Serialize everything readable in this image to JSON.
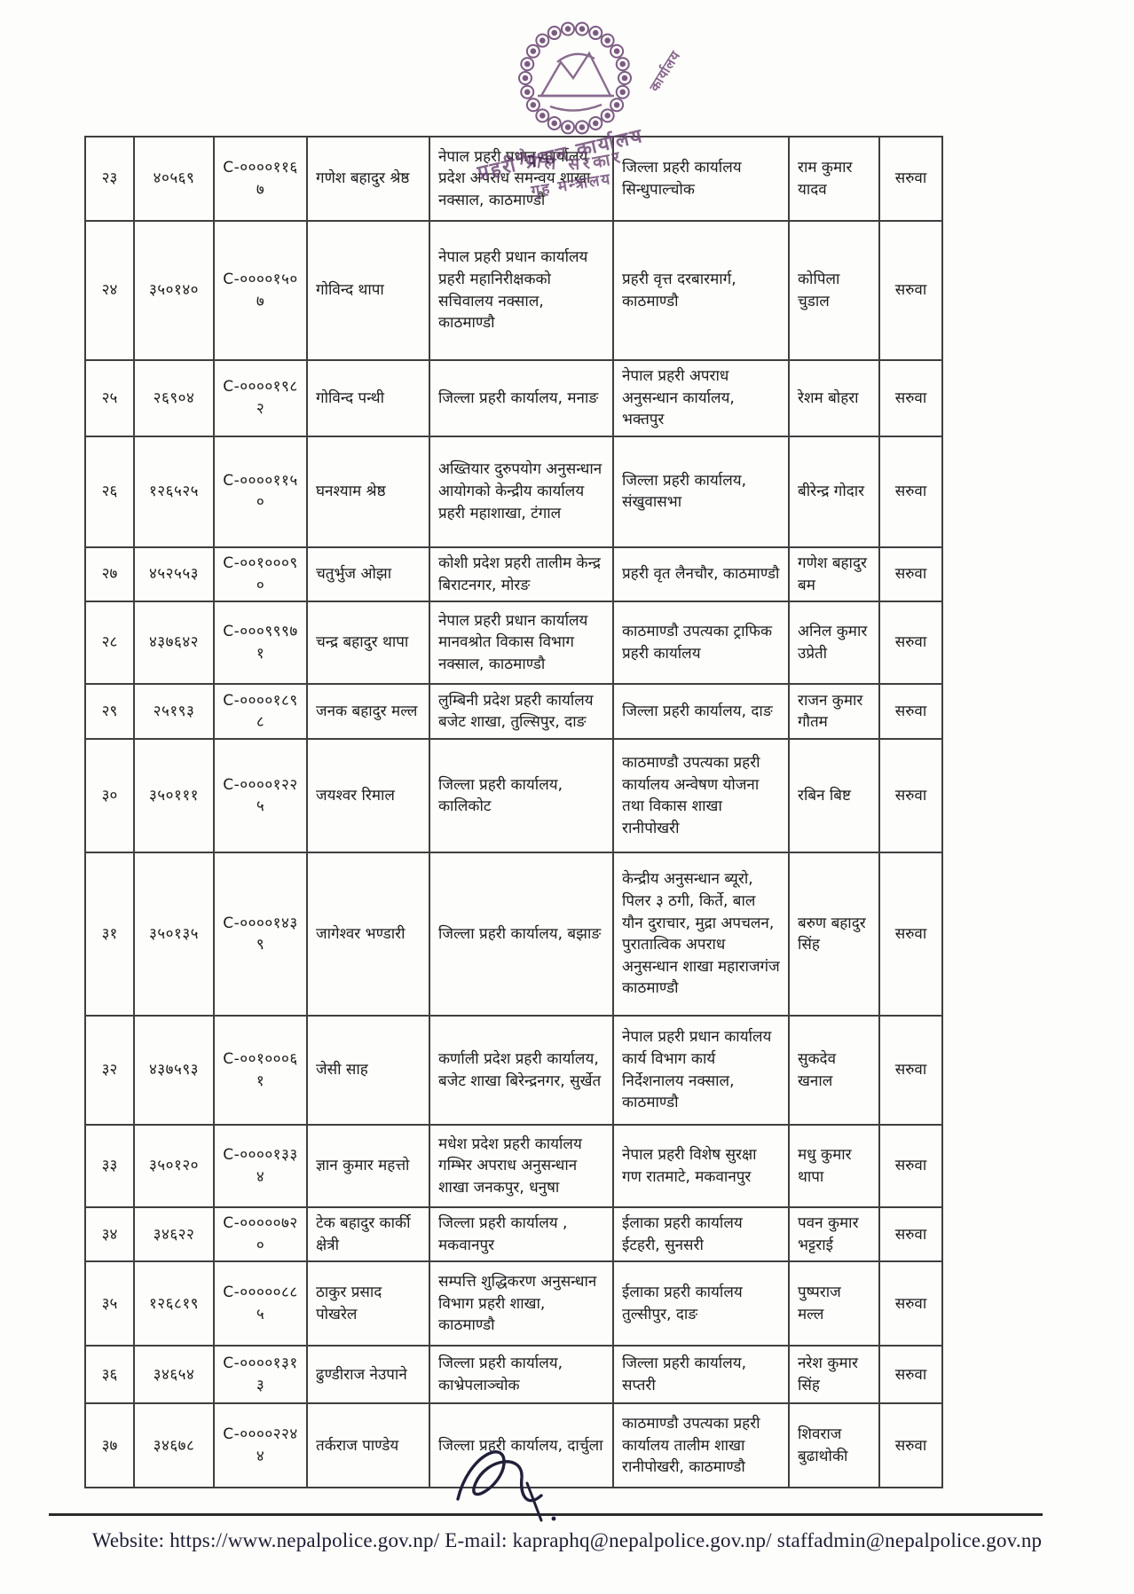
{
  "stamp": {
    "gov_text": "नेपाल सरकार",
    "ministry_text": "गृह मन्त्रालय",
    "office_text": "प्रहरी प्रधान कार्यालय",
    "office_fragment": "कार्यालय",
    "color": "#6a4472"
  },
  "table": {
    "rows": [
      {
        "sn": "२३",
        "reg_no": "४०५६९",
        "cid": "C-००००११६७",
        "name": "गणेश बहादुर श्रेष्ठ",
        "from_office": "नेपाल प्रहरी प्रधान कार्यालय प्रदेश अपराध समन्वय शाखा नक्साल, काठमाण्डौ",
        "to_office": "जिल्ला प्रहरी कार्यालय सिन्धुपाल्चोक",
        "person": "राम कुमार यादव",
        "remark": "सरुवा"
      },
      {
        "sn": "२४",
        "reg_no": "३५०१४०",
        "cid": "C-००००१५०७",
        "name": "गोविन्द थापा",
        "from_office": "नेपाल प्रहरी प्रधान कार्यालय प्रहरी महानिरीक्षकको सचिवालय नक्साल, काठमाण्डौ",
        "to_office": "प्रहरी वृत्त दरबारमार्ग, काठमाण्डौ",
        "person": "कोपिला चुडाल",
        "remark": "सरुवा"
      },
      {
        "sn": "२५",
        "reg_no": "२६९०४",
        "cid": "C-००००१९८२",
        "name": "गोविन्द पन्थी",
        "from_office": "जिल्ला प्रहरी कार्यालय, मनाङ",
        "to_office": "नेपाल प्रहरी अपराध अनुसन्धान कार्यालय, भक्तपुर",
        "person": "रेशम बोहरा",
        "remark": "सरुवा"
      },
      {
        "sn": "२६",
        "reg_no": "१२६५२५",
        "cid": "C-००००११५०",
        "name": "घनश्याम श्रेष्ठ",
        "from_office": "अख्तियार दुरुपयोग अनुसन्धान आयोगको केन्द्रीय कार्यालय प्रहरी महाशाखा, टंगाल",
        "to_office": "जिल्ला प्रहरी कार्यालय, संखुवासभा",
        "person": "बीरेन्द्र गोदार",
        "remark": "सरुवा"
      },
      {
        "sn": "२७",
        "reg_no": "४५२५५३",
        "cid": "C-००१०००९०",
        "name": "चतुर्भुज ओझा",
        "from_office": "कोशी प्रदेश प्रहरी तालीम केन्द्र बिराटनगर, मोरङ",
        "to_office": "प्रहरी वृत लैनचौर, काठमाण्डौ",
        "person": "गणेश बहादुर बम",
        "remark": "सरुवा"
      },
      {
        "sn": "२८",
        "reg_no": "४३७६४२",
        "cid": "C-०००९९९७१",
        "name": "चन्द्र बहादुर थापा",
        "from_office": "नेपाल प्रहरी प्रधान कार्यालय मानवश्रोत विकास विभाग नक्साल, काठमाण्डौ",
        "to_office": "काठमाण्डौ उपत्यका ट्राफिक प्रहरी कार्यालय",
        "person": "अनिल कुमार उप्रेती",
        "remark": "सरुवा"
      },
      {
        "sn": "२९",
        "reg_no": "२५१९३",
        "cid": "C-००००१८९८",
        "name": "जनक बहादुर मल्ल",
        "from_office": "लुम्बिनी प्रदेश प्रहरी कार्यालय बजेट शाखा, तुल्सिपुर, दाङ",
        "to_office": "जिल्ला प्रहरी कार्यालय, दाङ",
        "person": "राजन कुमार गौतम",
        "remark": "सरुवा"
      },
      {
        "sn": "३०",
        "reg_no": "३५०१११",
        "cid": "C-००००१२२५",
        "name": "जयश्वर रिमाल",
        "from_office": "जिल्ला प्रहरी कार्यालय, कालिकोट",
        "to_office": "काठमाण्डौ उपत्यका प्रहरी कार्यालय अन्वेषण योजना तथा विकास शाखा रानीपोखरी",
        "person": "रबिन बिष्ट",
        "remark": "सरुवा"
      },
      {
        "sn": "३१",
        "reg_no": "३५०१३५",
        "cid": "C-००००१४३९",
        "name": "जागेश्वर भण्डारी",
        "from_office": "जिल्ला प्रहरी कार्यालय, बझाङ",
        "to_office": "केन्द्रीय अनुसन्धान ब्यूरो, पिलर ३ ठगी, किर्ते, बाल यौन दुराचार, मुद्रा अपचलन, पुरातात्विक अपराध अनुसन्धान शाखा महाराजगंज काठमाण्डौ",
        "person": "बरुण बहादुर सिंह",
        "remark": "सरुवा"
      },
      {
        "sn": "३२",
        "reg_no": "४३७५९३",
        "cid": "C-००१०००६१",
        "name": "जेसी साह",
        "from_office": "कर्णाली प्रदेश प्रहरी कार्यालय, बजेट शाखा बिरेन्द्रनगर, सुर्खेत",
        "to_office": "नेपाल प्रहरी प्रधान कार्यालय कार्य विभाग कार्य निर्देशनालय नक्साल, काठमाण्डौ",
        "person": "सुकदेव खनाल",
        "remark": "सरुवा"
      },
      {
        "sn": "३३",
        "reg_no": "३५०१२०",
        "cid": "C-००००१३३४",
        "name": "ज्ञान कुमार महत्तो",
        "from_office": "मधेश प्रदेश प्रहरी कार्यालय गम्भिर अपराध अनुसन्धान शाखा जनकपुर, धनुषा",
        "to_office": "नेपाल प्रहरी विशेष सुरक्षा गण रातमाटे, मकवानपुर",
        "person": "मधु कुमार थापा",
        "remark": "सरुवा"
      },
      {
        "sn": "३४",
        "reg_no": "३४६२२",
        "cid": "C-०००००७२०",
        "name": "टेक बहादुर कार्की क्षेत्री",
        "from_office": "जिल्ला प्रहरी कार्यालय , मकवानपुर",
        "to_office": "ईलाका प्रहरी कार्यालय ईटहरी, सुनसरी",
        "person": "पवन कुमार भट्टराई",
        "remark": "सरुवा"
      },
      {
        "sn": "३५",
        "reg_no": "१२६८१९",
        "cid": "C-०००००८८५",
        "name": "ठाकुर प्रसाद पोखरेल",
        "from_office": "सम्पत्ति शुद्धिकरण अनुसन्धान विभाग प्रहरी शाखा, काठमाण्डौ",
        "to_office": "ईलाका प्रहरी कार्यालय तुल्सीपुर, दाङ",
        "person": "पुष्पराज मल्ल",
        "remark": "सरुवा"
      },
      {
        "sn": "३६",
        "reg_no": "३४६५४",
        "cid": "C-००००१३१३",
        "name": "ढुण्डीराज नेउपाने",
        "from_office": "जिल्ला प्रहरी कार्यालय, काभ्रेपलाञ्चोक",
        "to_office": "जिल्ला प्रहरी कार्यालय, सप्तरी",
        "person": "नरेश कुमार सिंह",
        "remark": "सरुवा"
      },
      {
        "sn": "३७",
        "reg_no": "३४६७८",
        "cid": "C-००००२२४४",
        "name": "तर्कराज पाण्डेय",
        "from_office": "जिल्ला प्रहरी कार्यालय, दार्चुला",
        "to_office": "काठमाण्डौ उपत्यका प्रहरी कार्यालय तालीम शाखा रानीपोखरी, काठमाण्डौ",
        "person": "शिवराज बुढाथोकी",
        "remark": "सरुवा"
      }
    ]
  },
  "footer": {
    "text": "Website: https://www.nepalpolice.gov.np/ E-mail: kapraphq@nepalpolice.gov.np/ staffadmin@nepalpolice.gov.np"
  }
}
